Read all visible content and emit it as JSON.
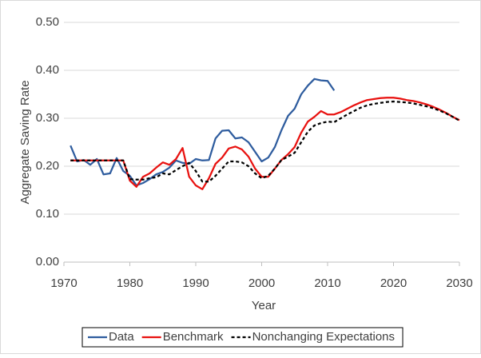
{
  "chart_data": {
    "type": "line",
    "x_label": "Year",
    "y_label": "Aggregate Saving Rate",
    "x": [
      1971,
      1972,
      1973,
      1974,
      1975,
      1976,
      1977,
      1978,
      1979,
      1980,
      1981,
      1982,
      1983,
      1984,
      1985,
      1986,
      1987,
      1988,
      1989,
      1990,
      1991,
      1992,
      1993,
      1994,
      1995,
      1996,
      1997,
      1998,
      1999,
      2000,
      2001,
      2002,
      2003,
      2004,
      2005,
      2006,
      2007,
      2008,
      2009,
      2010,
      2011,
      2012,
      2013,
      2014,
      2015,
      2016,
      2017,
      2018,
      2019,
      2020,
      2021,
      2022,
      2023,
      2024,
      2025,
      2026,
      2027,
      2028,
      2029,
      2030
    ],
    "series": [
      {
        "name": "Data",
        "color": "#2e5c9e",
        "dashed": false,
        "values": [
          0.243,
          0.21,
          0.213,
          0.203,
          0.215,
          0.183,
          0.185,
          0.217,
          0.19,
          0.18,
          0.16,
          0.165,
          0.173,
          0.183,
          0.188,
          0.197,
          0.212,
          0.207,
          0.205,
          0.215,
          0.212,
          0.213,
          0.258,
          0.274,
          0.275,
          0.258,
          0.26,
          0.25,
          0.23,
          0.21,
          0.218,
          0.24,
          0.275,
          0.305,
          0.32,
          0.35,
          0.368,
          0.382,
          0.379,
          0.378,
          0.358,
          null,
          null,
          null,
          null,
          null,
          null,
          null,
          null,
          null,
          null,
          null,
          null,
          null,
          null,
          null,
          null,
          null,
          null,
          null
        ]
      },
      {
        "name": "Benchmark",
        "color": "#e8110f",
        "dashed": false,
        "values": [
          0.212,
          0.212,
          0.212,
          0.212,
          0.212,
          0.212,
          0.212,
          0.212,
          0.212,
          0.17,
          0.157,
          0.178,
          0.185,
          0.197,
          0.208,
          0.203,
          0.215,
          0.238,
          0.178,
          0.16,
          0.152,
          0.175,
          0.205,
          0.218,
          0.237,
          0.241,
          0.235,
          0.22,
          0.195,
          0.178,
          0.178,
          0.195,
          0.213,
          0.225,
          0.24,
          0.27,
          0.293,
          0.303,
          0.315,
          0.308,
          0.308,
          0.313,
          0.32,
          0.327,
          0.333,
          0.338,
          0.34,
          0.342,
          0.343,
          0.343,
          0.341,
          0.338,
          0.336,
          0.333,
          0.329,
          0.324,
          0.318,
          0.311,
          0.303,
          0.296
        ]
      },
      {
        "name": "Nonchanging Expectations",
        "color": "#000000",
        "dashed": true,
        "values": [
          0.212,
          0.212,
          0.212,
          0.212,
          0.212,
          0.212,
          0.212,
          0.212,
          0.212,
          0.173,
          0.172,
          0.172,
          0.175,
          0.177,
          0.185,
          0.183,
          0.192,
          0.2,
          0.207,
          0.19,
          0.168,
          0.168,
          0.18,
          0.195,
          0.21,
          0.21,
          0.208,
          0.2,
          0.185,
          0.175,
          0.18,
          0.195,
          0.213,
          0.22,
          0.228,
          0.25,
          0.272,
          0.285,
          0.29,
          0.293,
          0.292,
          0.3,
          0.308,
          0.315,
          0.322,
          0.327,
          0.33,
          0.332,
          0.334,
          0.335,
          0.334,
          0.333,
          0.331,
          0.328,
          0.325,
          0.321,
          0.316,
          0.31,
          0.303,
          0.295
        ]
      }
    ],
    "xlim": [
      1970,
      2030
    ],
    "xticks": [
      1970,
      1980,
      1990,
      2000,
      2010,
      2020,
      2030
    ],
    "ylim": [
      0,
      0.5
    ],
    "yticks": [
      {
        "value": 0,
        "label": "0.00"
      },
      {
        "value": 0.1,
        "label": "0.10"
      },
      {
        "value": 0.2,
        "label": "0.20"
      },
      {
        "value": 0.3,
        "label": "0.30"
      },
      {
        "value": 0.4,
        "label": "0.40"
      },
      {
        "value": 0.5,
        "label": "0.50"
      }
    ],
    "grid": true,
    "legend": "bottom"
  }
}
